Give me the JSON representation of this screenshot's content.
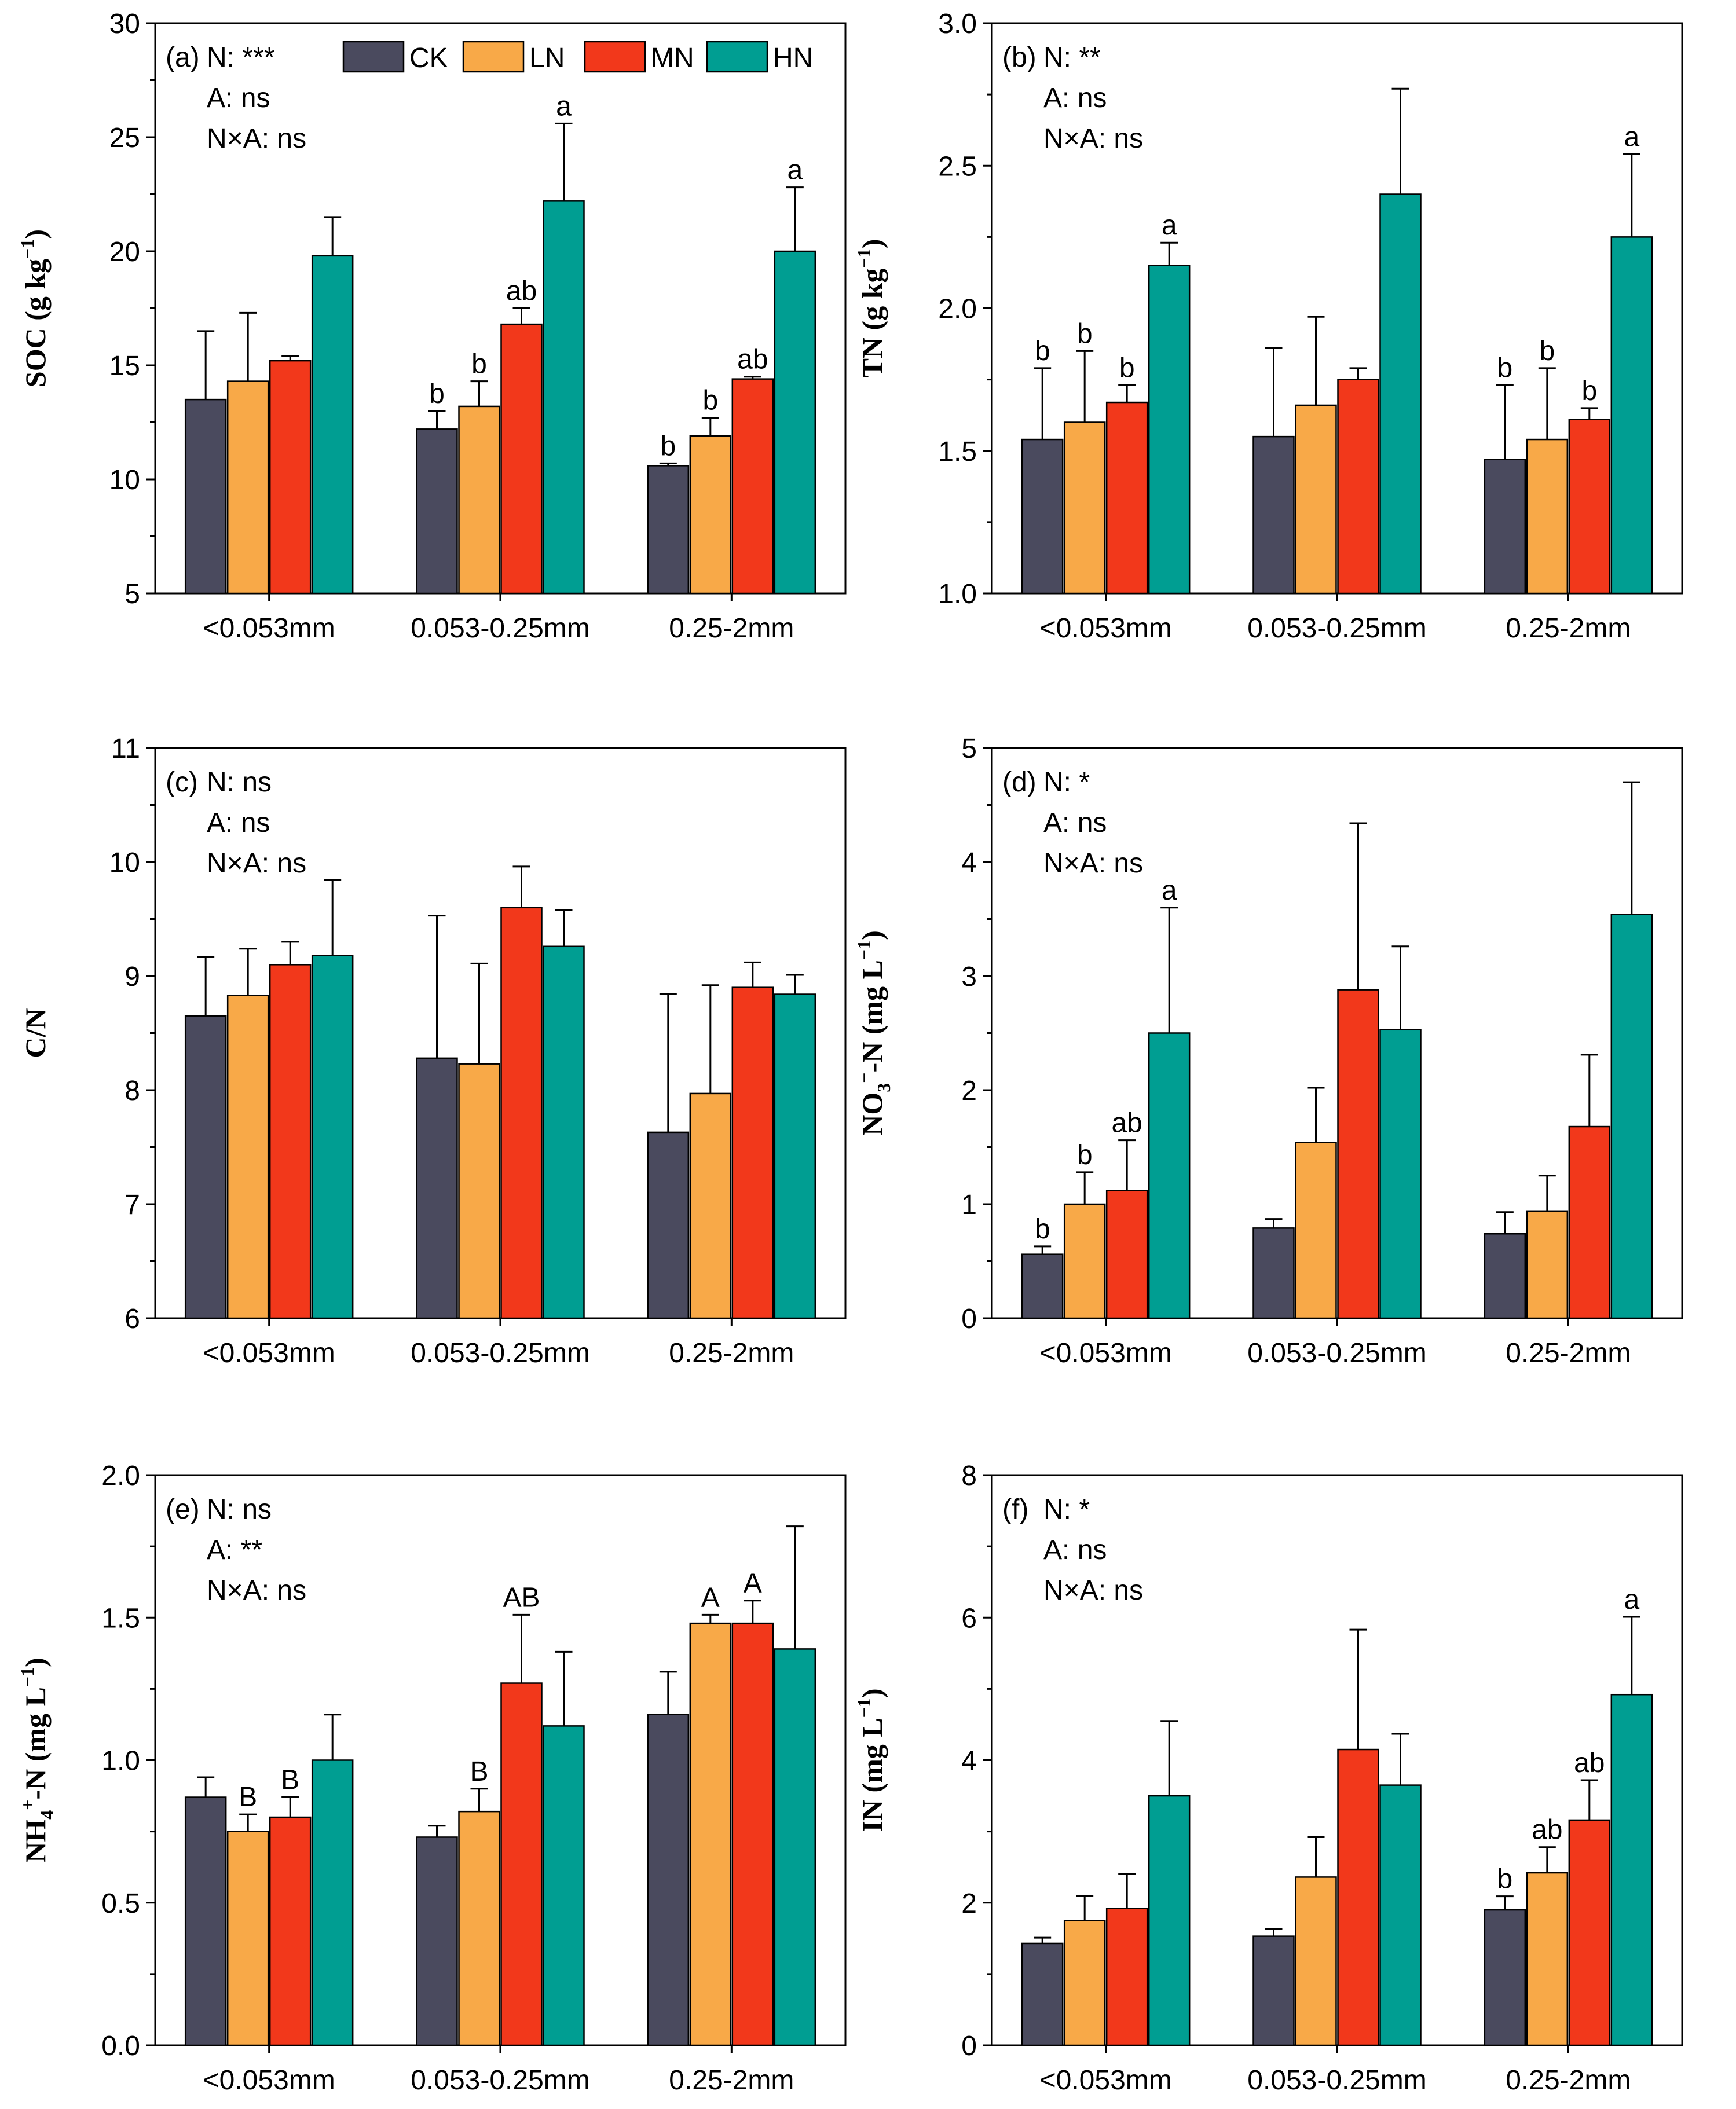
{
  "colors": {
    "CK": "#4a4a5e",
    "LN": "#f8a948",
    "MN": "#f2381b",
    "HN": "#009e92"
  },
  "legend": [
    "CK",
    "LN",
    "MN",
    "HN"
  ],
  "chart_data": [
    {
      "type": "bar",
      "panel_label": "(a)",
      "stats": [
        "N: ***",
        "A: ns",
        "N×A: ns"
      ],
      "ylabel": "SOC (g kg⁻¹)",
      "ylabel_parts": [
        [
          "SOC (g kg",
          ""
        ],
        [
          "−1",
          "sup"
        ],
        [
          ")",
          ""
        ]
      ],
      "xlabel": "",
      "ylim": [
        5,
        30
      ],
      "yticks": [
        "5",
        "10",
        "15",
        "20",
        "25",
        "30"
      ],
      "categories": [
        "<0.053mm",
        "0.053-0.25mm",
        "0.25-2mm"
      ],
      "series": [
        {
          "name": "CK",
          "values": [
            13.5,
            12.2,
            10.6
          ],
          "errors": [
            3.0,
            0.8,
            0.1
          ],
          "letters": [
            "",
            "b",
            "b"
          ]
        },
        {
          "name": "LN",
          "values": [
            14.3,
            13.2,
            11.9
          ],
          "errors": [
            3.0,
            1.1,
            0.8
          ],
          "letters": [
            "",
            "b",
            "b"
          ]
        },
        {
          "name": "MN",
          "values": [
            15.2,
            16.8,
            14.4
          ],
          "errors": [
            0.2,
            0.7,
            0.1
          ],
          "letters": [
            "",
            "ab",
            "ab"
          ]
        },
        {
          "name": "HN",
          "values": [
            19.8,
            22.2,
            20.0
          ],
          "errors": [
            1.7,
            3.4,
            2.8
          ],
          "letters": [
            "",
            "a",
            "a"
          ]
        }
      ]
    },
    {
      "type": "bar",
      "panel_label": "(b)",
      "stats": [
        "N: **",
        "A: ns",
        "N×A: ns"
      ],
      "ylabel": "TN (g kg⁻¹)",
      "ylabel_parts": [
        [
          "TN (g kg",
          ""
        ],
        [
          "−1",
          "sup"
        ],
        [
          ")",
          ""
        ]
      ],
      "xlabel": "",
      "ylim": [
        1.0,
        3.0
      ],
      "yticks": [
        "1.0",
        "1.5",
        "2.0",
        "2.5",
        "3.0"
      ],
      "categories": [
        "<0.053mm",
        "0.053-0.25mm",
        "0.25-2mm"
      ],
      "series": [
        {
          "name": "CK",
          "values": [
            1.54,
            1.55,
            1.47
          ],
          "errors": [
            0.25,
            0.31,
            0.26
          ],
          "letters": [
            "b",
            "",
            "b"
          ]
        },
        {
          "name": "LN",
          "values": [
            1.6,
            1.66,
            1.54
          ],
          "errors": [
            0.25,
            0.31,
            0.25
          ],
          "letters": [
            "b",
            "",
            "b"
          ]
        },
        {
          "name": "MN",
          "values": [
            1.67,
            1.75,
            1.61
          ],
          "errors": [
            0.06,
            0.04,
            0.04
          ],
          "letters": [
            "b",
            "",
            "b"
          ]
        },
        {
          "name": "HN",
          "values": [
            2.15,
            2.4,
            2.25
          ],
          "errors": [
            0.08,
            0.37,
            0.29
          ],
          "letters": [
            "a",
            "",
            "a"
          ]
        }
      ]
    },
    {
      "type": "bar",
      "panel_label": "(c)",
      "stats": [
        "N: ns",
        "A: ns",
        "N×A: ns"
      ],
      "ylabel": "C/N",
      "ylabel_parts": [
        [
          "C/N",
          ""
        ]
      ],
      "xlabel": "",
      "ylim": [
        6,
        11
      ],
      "yticks": [
        "6",
        "7",
        "8",
        "9",
        "10",
        "11"
      ],
      "categories": [
        "<0.053mm",
        "0.053-0.25mm",
        "0.25-2mm"
      ],
      "series": [
        {
          "name": "CK",
          "values": [
            8.65,
            8.28,
            7.63
          ],
          "errors": [
            0.52,
            1.25,
            1.21
          ],
          "letters": [
            "",
            "",
            ""
          ]
        },
        {
          "name": "LN",
          "values": [
            8.83,
            8.23,
            7.97
          ],
          "errors": [
            0.41,
            0.88,
            0.95
          ],
          "letters": [
            "",
            "",
            ""
          ]
        },
        {
          "name": "MN",
          "values": [
            9.1,
            9.6,
            8.9
          ],
          "errors": [
            0.2,
            0.36,
            0.22
          ],
          "letters": [
            "",
            "",
            ""
          ]
        },
        {
          "name": "HN",
          "values": [
            9.18,
            9.26,
            8.84
          ],
          "errors": [
            0.66,
            0.32,
            0.17
          ],
          "letters": [
            "",
            "",
            ""
          ]
        }
      ]
    },
    {
      "type": "bar",
      "panel_label": "(d)",
      "stats": [
        "N: *",
        "A: ns",
        "N×A: ns"
      ],
      "ylabel": "NO₃⁻-N (mg L⁻¹)",
      "ylabel_parts": [
        [
          "NO",
          ""
        ],
        [
          "3",
          "sub"
        ],
        [
          "−",
          "sup"
        ],
        [
          "-N (mg L",
          ""
        ],
        [
          "−1",
          "sup"
        ],
        [
          ")",
          ""
        ]
      ],
      "xlabel": "",
      "ylim": [
        0,
        5
      ],
      "yticks": [
        "0",
        "1",
        "2",
        "3",
        "4",
        "5"
      ],
      "categories": [
        "<0.053mm",
        "0.053-0.25mm",
        "0.25-2mm"
      ],
      "series": [
        {
          "name": "CK",
          "values": [
            0.56,
            0.79,
            0.74
          ],
          "errors": [
            0.07,
            0.08,
            0.19
          ],
          "letters": [
            "b",
            "",
            ""
          ]
        },
        {
          "name": "LN",
          "values": [
            1.0,
            1.54,
            0.94
          ],
          "errors": [
            0.28,
            0.48,
            0.31
          ],
          "letters": [
            "b",
            "",
            ""
          ]
        },
        {
          "name": "MN",
          "values": [
            1.12,
            2.88,
            1.68
          ],
          "errors": [
            0.44,
            1.46,
            0.63
          ],
          "letters": [
            "ab",
            "",
            ""
          ]
        },
        {
          "name": "HN",
          "values": [
            2.5,
            2.53,
            3.54
          ],
          "errors": [
            1.1,
            0.73,
            1.16
          ],
          "letters": [
            "a",
            "",
            ""
          ]
        }
      ]
    },
    {
      "type": "bar",
      "panel_label": "(e)",
      "stats": [
        "N: ns",
        "A: **",
        "N×A: ns"
      ],
      "ylabel": "NH₄⁺-N (mg L⁻¹)",
      "ylabel_parts": [
        [
          "NH",
          ""
        ],
        [
          "4",
          "sub"
        ],
        [
          "+",
          "sup"
        ],
        [
          "-N (mg L",
          ""
        ],
        [
          "−1",
          "sup"
        ],
        [
          ")",
          ""
        ]
      ],
      "xlabel": "",
      "ylim": [
        0.0,
        2.0
      ],
      "yticks": [
        "0.0",
        "0.5",
        "1.0",
        "1.5",
        "2.0"
      ],
      "categories": [
        "<0.053mm",
        "0.053-0.25mm",
        "0.25-2mm"
      ],
      "series": [
        {
          "name": "CK",
          "values": [
            0.87,
            0.73,
            1.16
          ],
          "errors": [
            0.07,
            0.04,
            0.15
          ],
          "letters": [
            "",
            "",
            ""
          ]
        },
        {
          "name": "LN",
          "values": [
            0.75,
            0.82,
            1.48
          ],
          "errors": [
            0.06,
            0.08,
            0.03
          ],
          "letters": [
            "B",
            "B",
            "A"
          ]
        },
        {
          "name": "MN",
          "values": [
            0.8,
            1.27,
            1.48
          ],
          "errors": [
            0.07,
            0.24,
            0.08
          ],
          "letters": [
            "B",
            "AB",
            "A"
          ]
        },
        {
          "name": "HN",
          "values": [
            1.0,
            1.12,
            1.39
          ],
          "errors": [
            0.16,
            0.26,
            0.43
          ],
          "letters": [
            "",
            "",
            ""
          ]
        }
      ]
    },
    {
      "type": "bar",
      "panel_label": "(f)",
      "stats": [
        "N: *",
        "A: ns",
        "N×A: ns"
      ],
      "ylabel": "IN (mg L⁻¹)",
      "ylabel_parts": [
        [
          "IN (mg L",
          ""
        ],
        [
          "−1",
          "sup"
        ],
        [
          ")",
          ""
        ]
      ],
      "xlabel": "",
      "ylim": [
        0,
        8
      ],
      "yticks": [
        "0",
        "2",
        "4",
        "6",
        "8"
      ],
      "categories": [
        "<0.053mm",
        "0.053-0.25mm",
        "0.25-2mm"
      ],
      "series": [
        {
          "name": "CK",
          "values": [
            1.43,
            1.53,
            1.9
          ],
          "errors": [
            0.08,
            0.1,
            0.19
          ],
          "letters": [
            "",
            "",
            "b"
          ]
        },
        {
          "name": "LN",
          "values": [
            1.75,
            2.36,
            2.42
          ],
          "errors": [
            0.35,
            0.56,
            0.36
          ],
          "letters": [
            "",
            "",
            "ab"
          ]
        },
        {
          "name": "MN",
          "values": [
            1.92,
            4.15,
            3.16
          ],
          "errors": [
            0.48,
            1.68,
            0.56
          ],
          "letters": [
            "",
            "",
            "ab"
          ]
        },
        {
          "name": "HN",
          "values": [
            3.5,
            3.65,
            4.92
          ],
          "errors": [
            1.05,
            0.72,
            1.09
          ],
          "letters": [
            "",
            "",
            "a"
          ]
        }
      ]
    }
  ]
}
